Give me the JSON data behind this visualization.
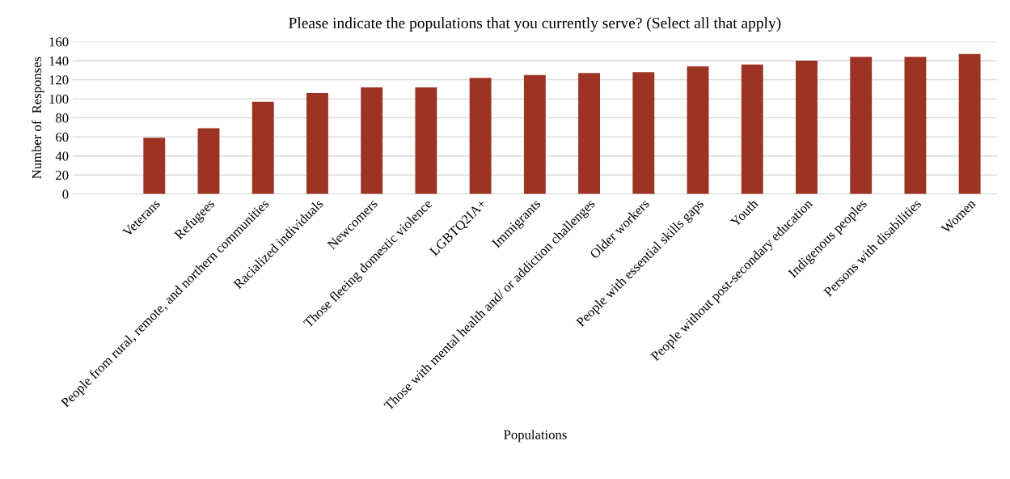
{
  "chart_data": {
    "type": "bar",
    "title": "Please indicate the populations that you currently serve? (Select all that apply)",
    "xlabel": "Populations",
    "ylabel": "Number of  Responses",
    "categories": [
      null,
      "Veterans",
      "Refugees",
      "People from rural, remote, and northern communities",
      "Racialized individuals",
      "Newcomers",
      "Those fleeing domestic violence",
      "LGBTQ2IA+",
      "Immigrants",
      "Those with mental health and/ or addiction challenges",
      "Older workers",
      "People with essential skills gaps",
      "Youth",
      "People without post-secondary education",
      "Indigenous peoples",
      "Persons with disabilities",
      "Women"
    ],
    "values": [
      null,
      59,
      69,
      97,
      106,
      112,
      112,
      122,
      125,
      127,
      128,
      134,
      136,
      140,
      144,
      144,
      147
    ],
    "color": "#9c3323",
    "ylim": [
      0,
      160
    ],
    "yticks": [
      0,
      20,
      40,
      60,
      80,
      100,
      120,
      140,
      160
    ],
    "grid": "y",
    "legend": false
  }
}
